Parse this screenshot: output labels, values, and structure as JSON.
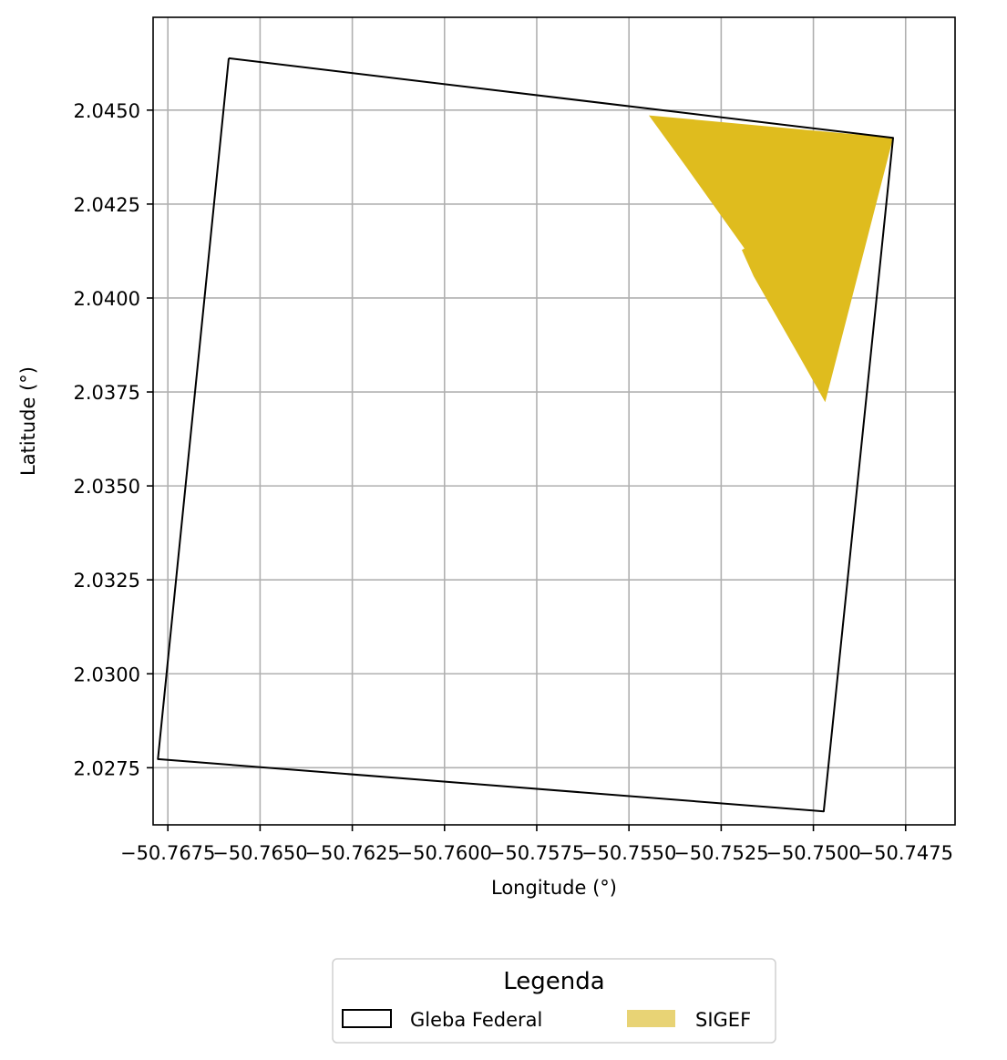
{
  "chart_data": {
    "type": "map",
    "xlabel": "Longitude (°)",
    "ylabel": "Latitude (°)",
    "xlim": [
      -50.7679,
      -50.74616
    ],
    "ylim": [
      2.02598,
      2.04747
    ],
    "grid": true,
    "xticks": [
      -50.7675,
      -50.765,
      -50.7625,
      -50.76,
      -50.7575,
      -50.755,
      -50.7525,
      -50.75,
      -50.7475
    ],
    "xtick_labels": [
      "−50.7675",
      "−50.7650",
      "−50.7625",
      "−50.7600",
      "−50.7575",
      "−50.7550",
      "−50.7525",
      "−50.7500",
      "−50.7475"
    ],
    "yticks": [
      2.0275,
      2.03,
      2.0325,
      2.035,
      2.0375,
      2.04,
      2.0425,
      2.045
    ],
    "ytick_labels": [
      "2.0275",
      "2.0300",
      "2.0325",
      "2.0350",
      "2.0375",
      "2.0400",
      "2.0425",
      "2.0450"
    ],
    "series": [
      {
        "name": "Gleba Federal",
        "kind": "polygon-outline",
        "color": "#000000",
        "points": [
          [
            -50.76585,
            2.04638
          ],
          [
            -50.74784,
            2.04426
          ],
          [
            -50.74972,
            2.02634
          ],
          [
            -50.76777,
            2.02773
          ],
          [
            -50.76585,
            2.04638
          ]
        ]
      },
      {
        "name": "SIGEF",
        "kind": "polygon-fill",
        "color": "#dfbc1e",
        "legend_color": "#e8d375",
        "points": [
          [
            -50.75446,
            2.04486
          ],
          [
            -50.74784,
            2.04426
          ],
          [
            -50.74968,
            2.03723
          ],
          [
            -50.75036,
            2.03841
          ],
          [
            -50.75162,
            2.04058
          ],
          [
            -50.75194,
            2.04128
          ],
          [
            -50.75187,
            2.04132
          ],
          [
            -50.75344,
            2.04348
          ],
          [
            -50.75446,
            2.04486
          ]
        ]
      }
    ],
    "legend": {
      "title": "Legenda",
      "placement": "bottom-center",
      "entries": [
        "Gleba Federal",
        "SIGEF"
      ]
    }
  }
}
